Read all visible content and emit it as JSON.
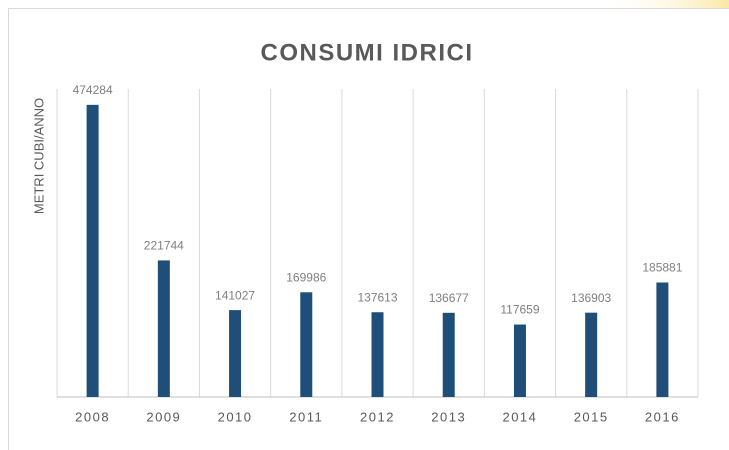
{
  "chart_data": {
    "type": "bar",
    "title": "CONSUMI IDRICI",
    "y_label": "METRI CUBI/ANNO",
    "categories": [
      "2008",
      "2009",
      "2010",
      "2011",
      "2012",
      "2013",
      "2014",
      "2015",
      "2016"
    ],
    "values": [
      474284,
      221744,
      141027,
      169986,
      137613,
      136677,
      117659,
      136903,
      185881
    ],
    "color": "#1f4e79",
    "ylim": [
      0,
      500000
    ],
    "grid": "vertical"
  }
}
